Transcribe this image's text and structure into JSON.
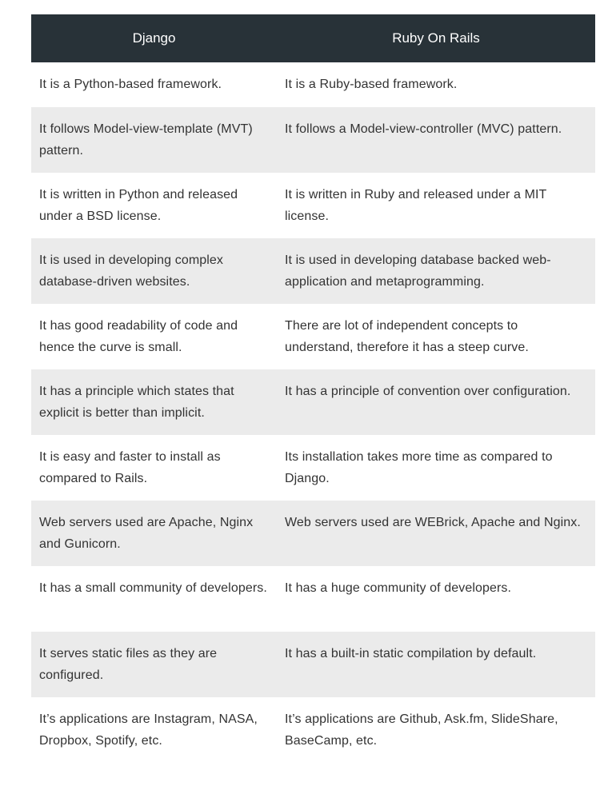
{
  "table": {
    "headers": [
      "Django",
      "Ruby On Rails"
    ],
    "rows": [
      [
        "It is a Python-based framework.",
        "It is a Ruby-based framework."
      ],
      [
        "It follows Model-view-template (MVT) pattern.",
        "It follows a Model-view-controller (MVC) pattern."
      ],
      [
        "It is written in Python and released under a BSD license.",
        "It is written in Ruby and released under a MIT license."
      ],
      [
        "It is used in developing complex database-driven websites.",
        "It is used in developing database backed web-application and metaprogramming."
      ],
      [
        "It has good readability of code and hence the curve is small.",
        "There are lot of independent concepts to understand, therefore it has a steep curve."
      ],
      [
        "It has a principle which states that explicit is better than implicit.",
        "It has a principle of convention over configuration."
      ],
      [
        "It is easy and faster to install as compared to Rails.",
        "Its installation takes more time as compared to Django."
      ],
      [
        "Web servers used are Apache, Nginx and Gunicorn.",
        "Web servers used are WEBrick, Apache and Nginx."
      ],
      [
        "It has a small community of developers.",
        "It has a huge community of developers."
      ],
      [
        "It serves static files as they are configured.",
        "It has a built-in static compilation by default."
      ],
      [
        "It’s applications are Instagram, NASA, Dropbox, Spotify, etc.",
        "It’s applications are Github, Ask.fm, SlideShare, BaseCamp, etc."
      ]
    ]
  },
  "colors": {
    "header_bg": "#283238",
    "stripe_bg": "#ebebeb",
    "text": "#333333"
  }
}
